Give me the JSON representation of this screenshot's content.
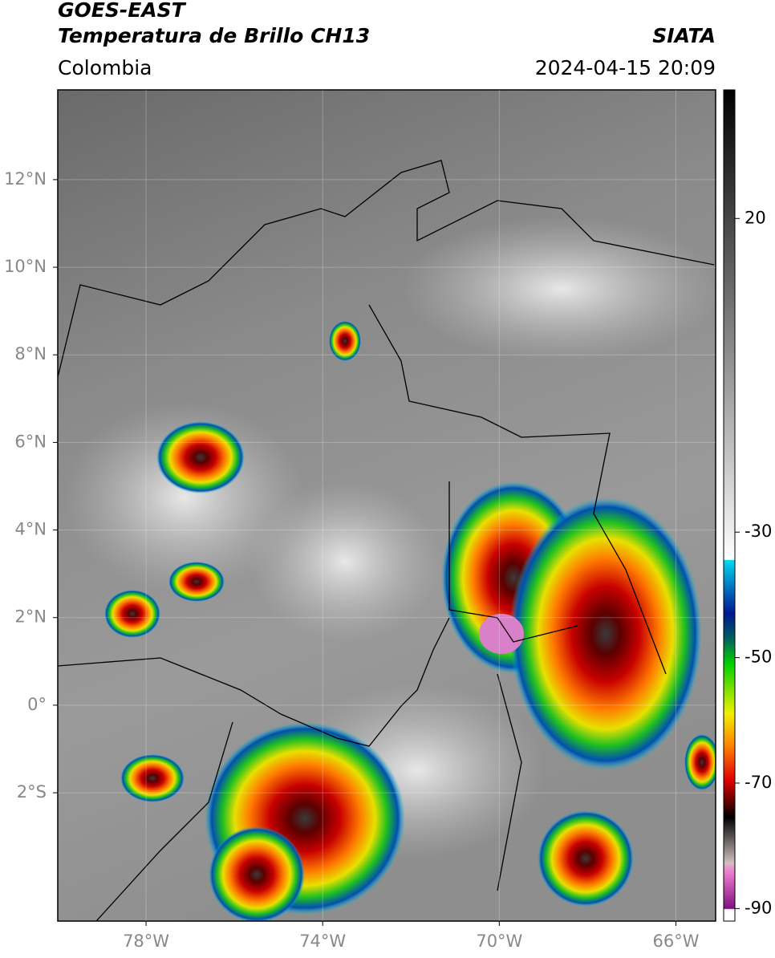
{
  "header": {
    "title": "GOES-EAST",
    "subtitle": "Temperatura de Brillo CH13",
    "region": "Colombia",
    "agency": "SIATA",
    "datetime": "2024-04-15 20:09"
  },
  "map": {
    "xlim": [
      -80,
      -65.1
    ],
    "ylim": [
      -4.93,
      14.05
    ],
    "xticks": [
      {
        "value": -78,
        "label": "78°W"
      },
      {
        "value": -74,
        "label": "74°W"
      },
      {
        "value": -70,
        "label": "70°W"
      },
      {
        "value": -66,
        "label": "66°W"
      }
    ],
    "yticks": [
      {
        "value": 12,
        "label": "12°N"
      },
      {
        "value": 10,
        "label": "10°N"
      },
      {
        "value": 8,
        "label": "8°N"
      },
      {
        "value": 6,
        "label": "6°N"
      },
      {
        "value": 4,
        "label": "4°N"
      },
      {
        "value": 2,
        "label": "2°N"
      },
      {
        "value": 0,
        "label": "0°"
      },
      {
        "value": -2,
        "label": "2°S"
      }
    ]
  },
  "colorbar": {
    "ylim": [
      -92,
      40.5
    ],
    "yticks": [
      20,
      -30,
      -50,
      -70,
      -90
    ]
  }
}
